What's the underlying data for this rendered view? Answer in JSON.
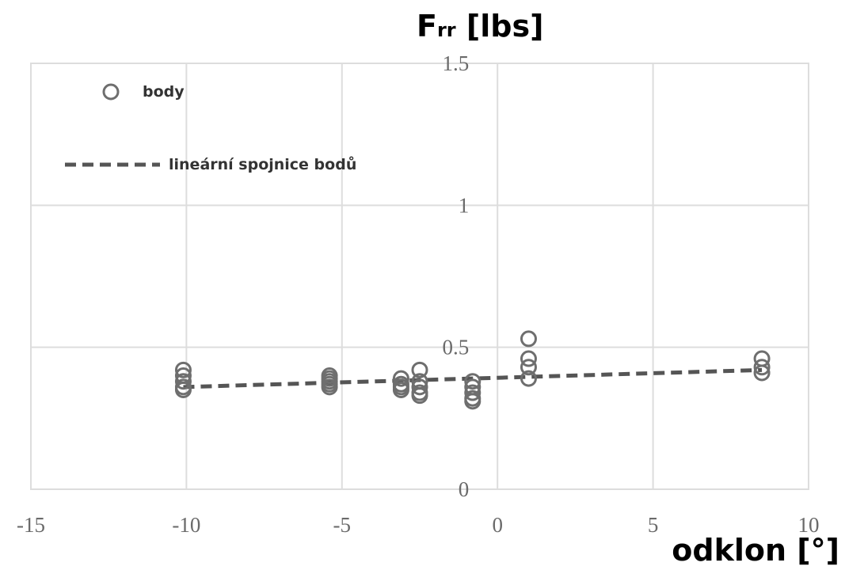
{
  "chart_data": {
    "type": "scatter",
    "title": "",
    "xlabel": "odklon [°]",
    "ylabel": "F",
    "ylabel_sub": "rr",
    "ylabel_unit": " [lbs]",
    "xlim": [
      -15,
      10
    ],
    "ylim": [
      0,
      1.5
    ],
    "xticks": [
      "-15",
      "-10",
      "-5",
      "0",
      "5",
      "10"
    ],
    "yticks": [
      "0",
      "0.5",
      "1",
      "1.5"
    ],
    "grid": true,
    "legend_position": "top-left",
    "series": [
      {
        "name": "body",
        "kind": "markers",
        "marker": "open-circle",
        "color": "#6e6e6e",
        "x": [
          -10.1,
          -10.1,
          -10.1,
          -10.1,
          -10.1,
          -5.4,
          -5.4,
          -5.4,
          -5.4,
          -5.4,
          -3.1,
          -3.1,
          -3.1,
          -3.1,
          -2.5,
          -2.5,
          -2.5,
          -2.5,
          -2.5,
          -0.8,
          -0.8,
          -0.8,
          -0.8,
          -0.8,
          1.0,
          1.0,
          1.0,
          1.0,
          8.5,
          8.5,
          8.5
        ],
        "y": [
          0.42,
          0.4,
          0.38,
          0.36,
          0.35,
          0.4,
          0.39,
          0.38,
          0.37,
          0.36,
          0.39,
          0.37,
          0.36,
          0.35,
          0.42,
          0.38,
          0.36,
          0.34,
          0.33,
          0.38,
          0.36,
          0.34,
          0.32,
          0.31,
          0.53,
          0.46,
          0.43,
          0.39,
          0.46,
          0.43,
          0.41
        ]
      },
      {
        "name": "lineární spojnice bodů",
        "kind": "line",
        "dash": "dashed",
        "color": "#555555",
        "x": [
          -10.1,
          8.5
        ],
        "y": [
          0.36,
          0.42
        ]
      }
    ]
  }
}
